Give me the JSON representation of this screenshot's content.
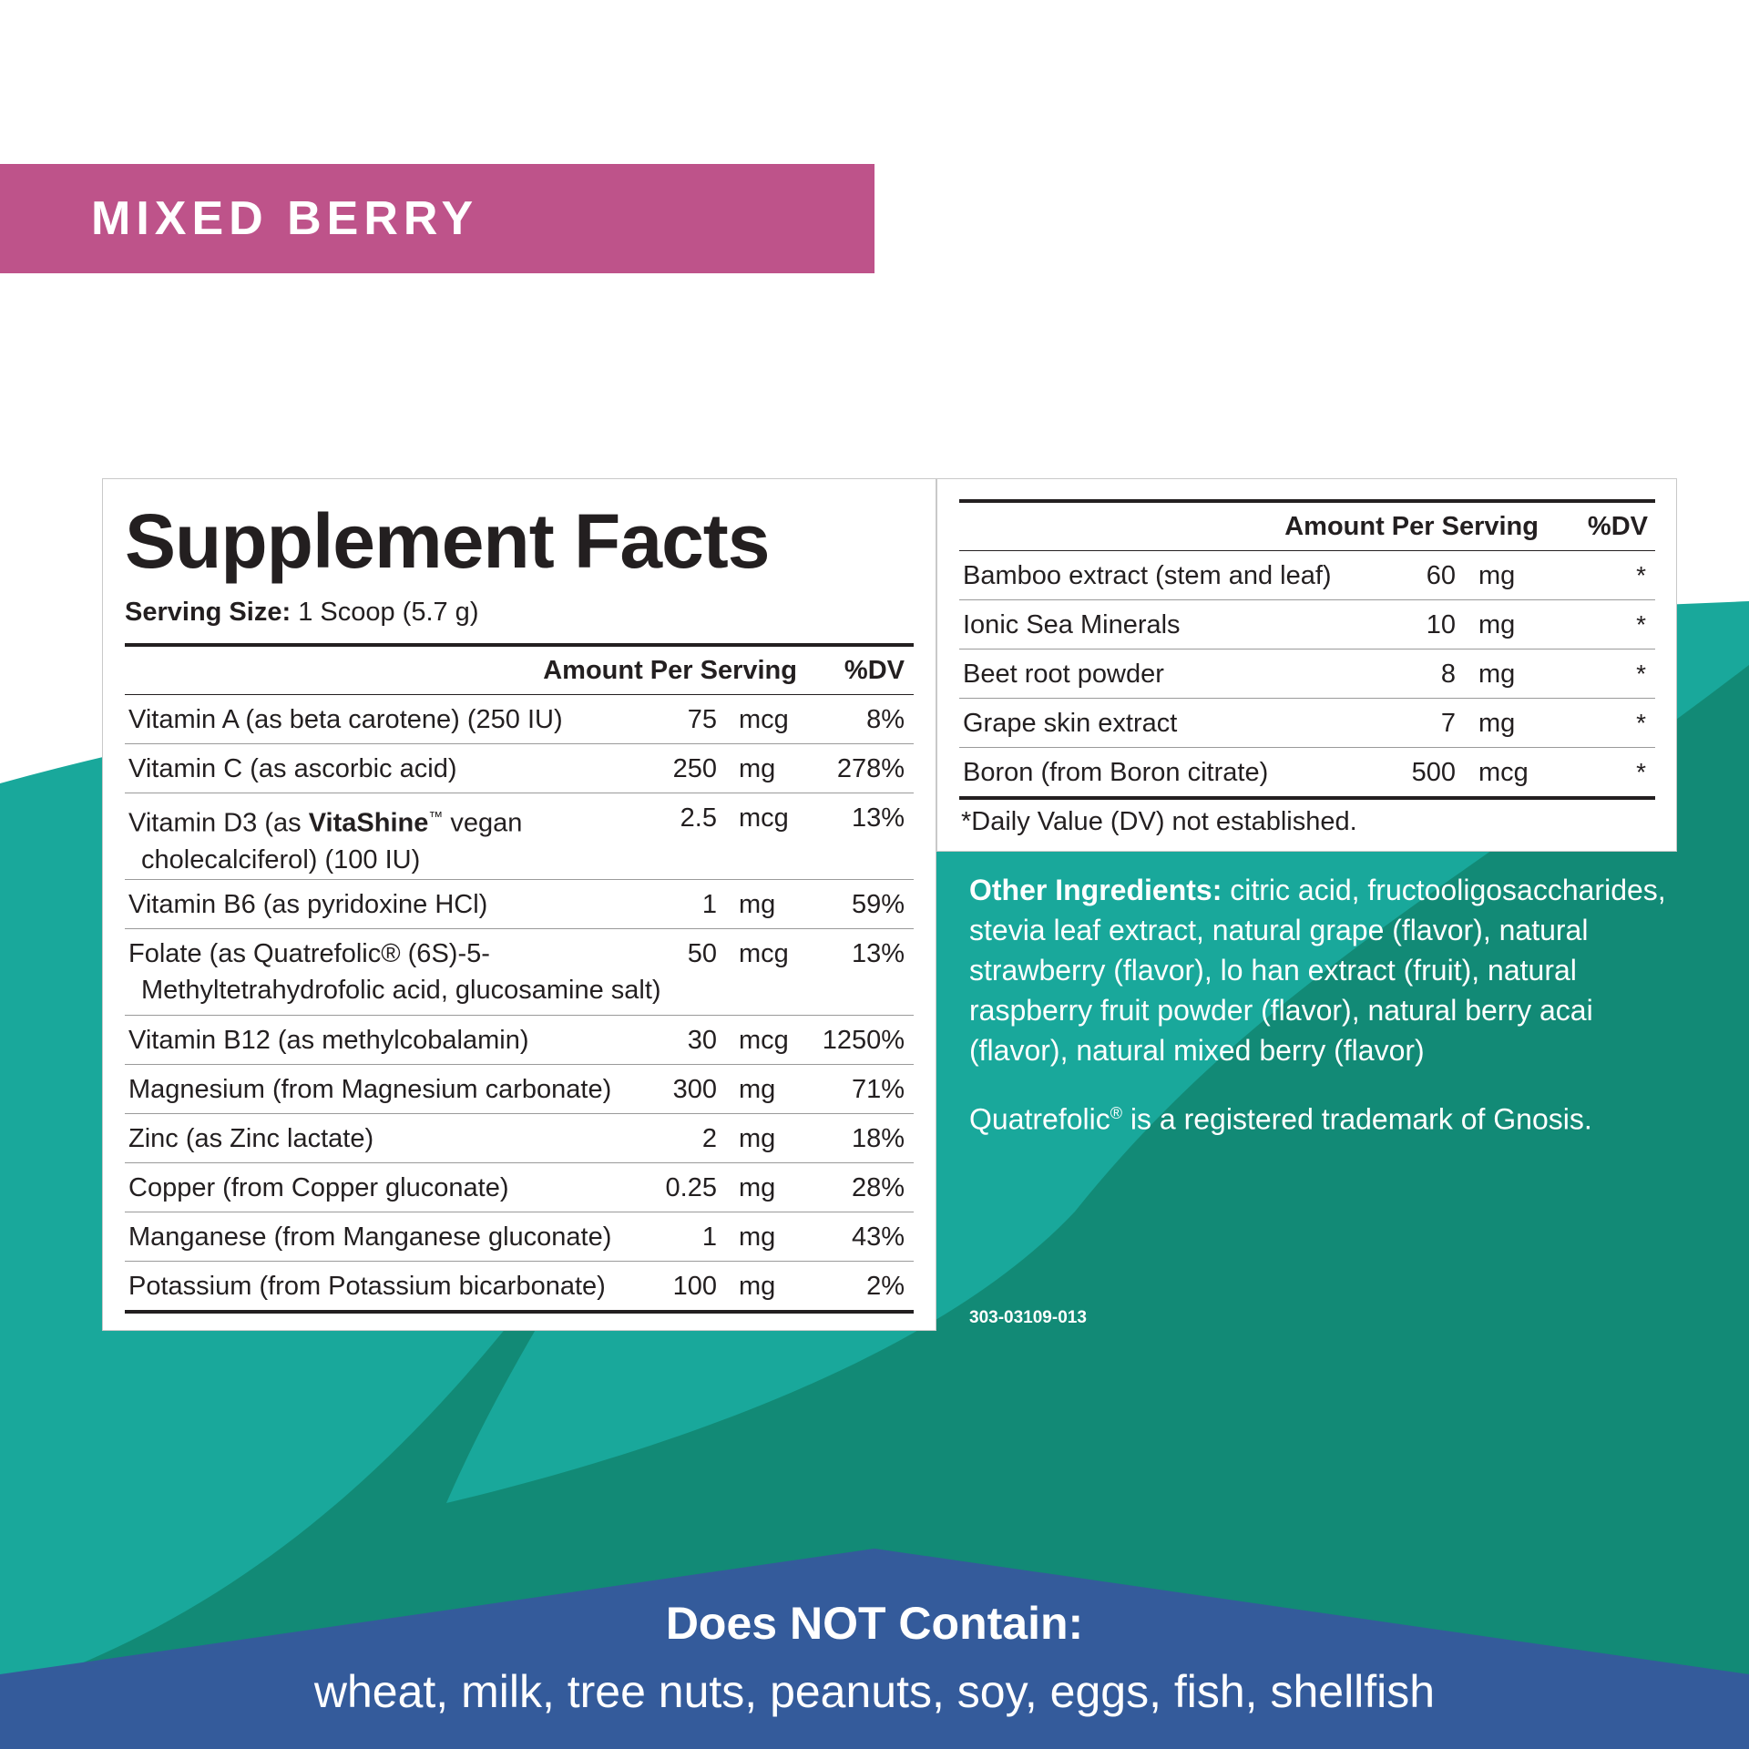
{
  "flavor_banner": {
    "text": "MIXED BERRY",
    "color": "#be538a"
  },
  "supplement_facts": {
    "title": "Supplement Facts",
    "serving_size_label": "Serving Size:",
    "serving_size_value": "1 Scoop (5.7 g)",
    "col_amount": "Amount Per Serving",
    "col_dv": "%DV",
    "rows": [
      {
        "name": "Vitamin A (as beta carotene) (250 IU)",
        "amount": "75",
        "unit": "mcg",
        "dv": "8%"
      },
      {
        "name": "Vitamin C (as ascorbic acid)",
        "amount": "250",
        "unit": "mg",
        "dv": "278%"
      },
      {
        "name_pre": "Vitamin D3 (as ",
        "name_brand": "VitaShine",
        "name_tm": "™",
        "name_post": " vegan",
        "name_line2": "cholecalciferol) (100 IU)",
        "amount": "2.5",
        "unit": "mcg",
        "dv": "13%"
      },
      {
        "name": "Vitamin B6 (as pyridoxine HCl)",
        "amount": "1",
        "unit": "mg",
        "dv": "59%"
      },
      {
        "name": "Folate (as Quatrefolic® (6S)-5-",
        "name_line2": "Methyltetrahydrofolic acid, glucosamine salt)",
        "amount": "50",
        "unit": "mcg",
        "dv": "13%"
      },
      {
        "name": "Vitamin B12 (as methylcobalamin)",
        "amount": "30",
        "unit": "mcg",
        "dv": "1250%"
      },
      {
        "name": "Magnesium (from Magnesium carbonate)",
        "amount": "300",
        "unit": "mg",
        "dv": "71%"
      },
      {
        "name": "Zinc (as Zinc lactate)",
        "amount": "2",
        "unit": "mg",
        "dv": "18%"
      },
      {
        "name": "Copper (from Copper gluconate)",
        "amount": "0.25",
        "unit": "mg",
        "dv": "28%"
      },
      {
        "name": "Manganese (from Manganese gluconate)",
        "amount": "1",
        "unit": "mg",
        "dv": "43%"
      },
      {
        "name": "Potassium (from Potassium bicarbonate)",
        "amount": "100",
        "unit": "mg",
        "dv": "2%"
      }
    ],
    "rows2": [
      {
        "name": "Bamboo extract (stem and leaf)",
        "amount": "60",
        "unit": "mg",
        "dv": "*"
      },
      {
        "name": "Ionic Sea Minerals",
        "amount": "10",
        "unit": "mg",
        "dv": "*"
      },
      {
        "name": "Beet root powder",
        "amount": "8",
        "unit": "mg",
        "dv": "*"
      },
      {
        "name": "Grape skin extract",
        "amount": "7",
        "unit": "mg",
        "dv": "*"
      },
      {
        "name": "Boron (from Boron citrate)",
        "amount": "500",
        "unit": "mcg",
        "dv": "*"
      }
    ],
    "footnote": "*Daily Value (DV) not established."
  },
  "other_ingredients": {
    "label": "Other Ingredients:",
    "text": " citric acid, fructooligosaccharides, stevia leaf extract, natural grape (flavor), natural strawberry (flavor), lo han extract (fruit), natural raspberry fruit powder (flavor), natural berry acai (flavor), natural mixed berry (flavor)"
  },
  "trademark": {
    "pre": "Quatrefolic",
    "reg": "®",
    "post": " is a registered trademark of Gnosis."
  },
  "product_code": "303-03109-013",
  "does_not_contain": {
    "title": "Does NOT Contain:",
    "list": "wheat, milk, tree nuts, peanuts, soy, eggs, fish, shellfish"
  },
  "colors": {
    "teal_light": "#19a89b",
    "teal_dark": "#128a76",
    "navy": "#345b9b",
    "banner": "#be538a"
  }
}
